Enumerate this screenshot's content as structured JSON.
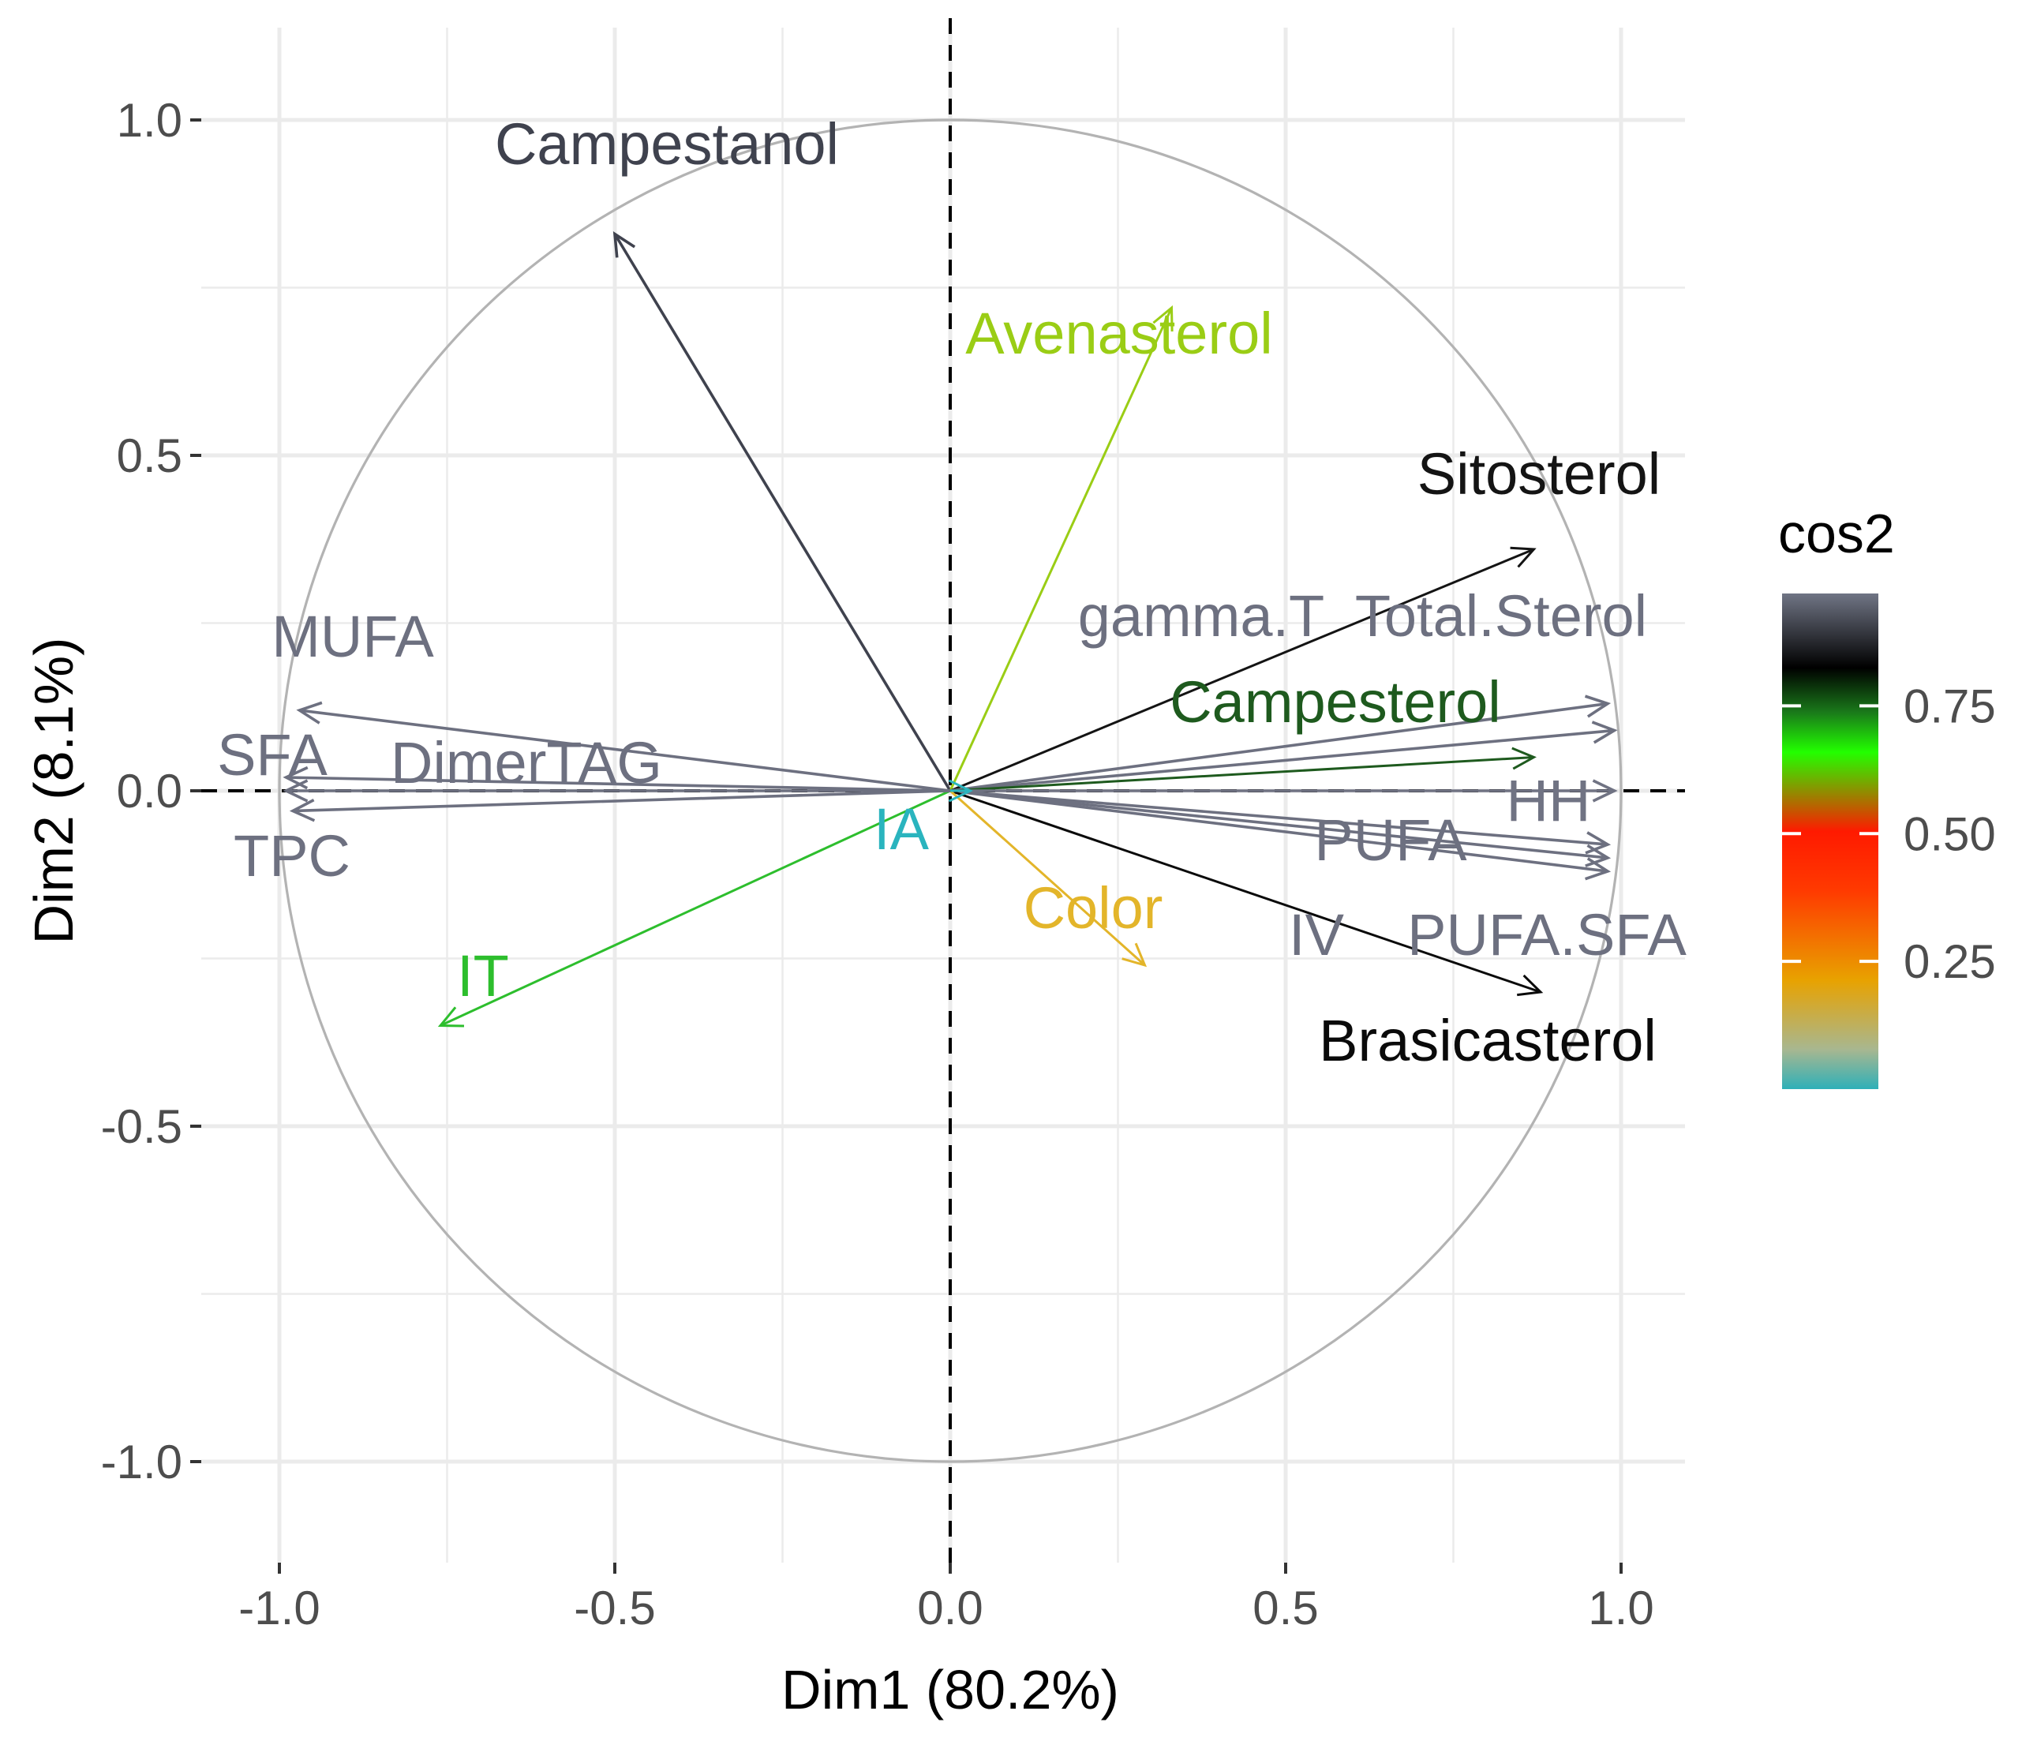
{
  "chart_data": {
    "type": "pca-correlation-circle",
    "xlabel": "Dim1 (80.2%)",
    "ylabel": "Dim2 (8.1%)",
    "xlim": [
      -1.1,
      1.1
    ],
    "ylim": [
      -1.1,
      1.1
    ],
    "x_ticks": [
      -1.0,
      -0.5,
      0.0,
      0.5,
      1.0
    ],
    "y_ticks": [
      -1.0,
      -0.5,
      0.0,
      0.5,
      1.0
    ],
    "x_tick_labels": [
      "-1.0",
      "-0.5",
      "0.0",
      "0.5",
      "1.0"
    ],
    "y_tick_labels": [
      "-1.0",
      "-0.5",
      "0.0",
      "0.5",
      "1.0"
    ],
    "grid": true,
    "unit_circle": true,
    "color_variable": "cos2",
    "legend": {
      "title": "cos2",
      "position": "right",
      "ticks": [
        0.25,
        0.5,
        0.75
      ],
      "tick_labels": [
        "0.25",
        "0.50",
        "0.75"
      ],
      "range": [
        0.0,
        0.97
      ],
      "gradient": [
        "#2EB0B8",
        "#E8A200",
        "#FF2000",
        "#22FF00",
        "#000000",
        "#707585"
      ]
    },
    "variables": [
      {
        "name": "Campestanol",
        "x": -0.5,
        "y": 0.83,
        "cos2": 0.94,
        "color": "#3f424e"
      },
      {
        "name": "Avenasterol",
        "x": 0.33,
        "y": 0.72,
        "cos2": 0.62,
        "color": "#9ACD15"
      },
      {
        "name": "Sitosterol",
        "x": 0.87,
        "y": 0.36,
        "cos2": 0.89,
        "color": "#141414"
      },
      {
        "name": "gamma.T",
        "x": 0.98,
        "y": 0.13,
        "cos2": 0.97,
        "color": "#6d7080"
      },
      {
        "name": "Total.Sterol",
        "x": 0.99,
        "y": 0.09,
        "cos2": 0.97,
        "color": "#6d7080"
      },
      {
        "name": "Campesterol",
        "x": 0.87,
        "y": 0.05,
        "cos2": 0.76,
        "color": "#1E5A1E"
      },
      {
        "name": "HH",
        "x": 0.99,
        "y": 0.0,
        "cos2": 0.98,
        "color": "#707383"
      },
      {
        "name": "PUFA",
        "x": 0.98,
        "y": -0.08,
        "cos2": 0.97,
        "color": "#6d7080"
      },
      {
        "name": "IV",
        "x": 0.98,
        "y": -0.12,
        "cos2": 0.97,
        "color": "#6d7080"
      },
      {
        "name": "PUFA.SFA",
        "x": 0.98,
        "y": -0.1,
        "cos2": 0.97,
        "color": "#6d7080"
      },
      {
        "name": "Brasicasterol",
        "x": 0.88,
        "y": -0.3,
        "cos2": 0.86,
        "color": "#0a0a0a"
      },
      {
        "name": "Color",
        "x": 0.29,
        "y": -0.26,
        "cos2": 0.15,
        "color": "#E3B52A"
      },
      {
        "name": "IA",
        "x": 0.03,
        "y": 0.0,
        "cos2": 0.01,
        "color": "#2AB4BE"
      },
      {
        "name": "IT",
        "x": -0.76,
        "y": -0.35,
        "cos2": 0.7,
        "color": "#2DBE2D"
      },
      {
        "name": "MUFA",
        "x": -0.97,
        "y": 0.12,
        "cos2": 0.96,
        "color": "#6d7080"
      },
      {
        "name": "SFA",
        "x": -0.99,
        "y": 0.02,
        "cos2": 0.97,
        "color": "#6d7080"
      },
      {
        "name": "DimerTAG",
        "x": -0.99,
        "y": 0.0,
        "cos2": 0.97,
        "color": "#6d7080"
      },
      {
        "name": "TPC",
        "x": -0.98,
        "y": -0.03,
        "cos2": 0.97,
        "color": "#6d7080"
      }
    ]
  }
}
